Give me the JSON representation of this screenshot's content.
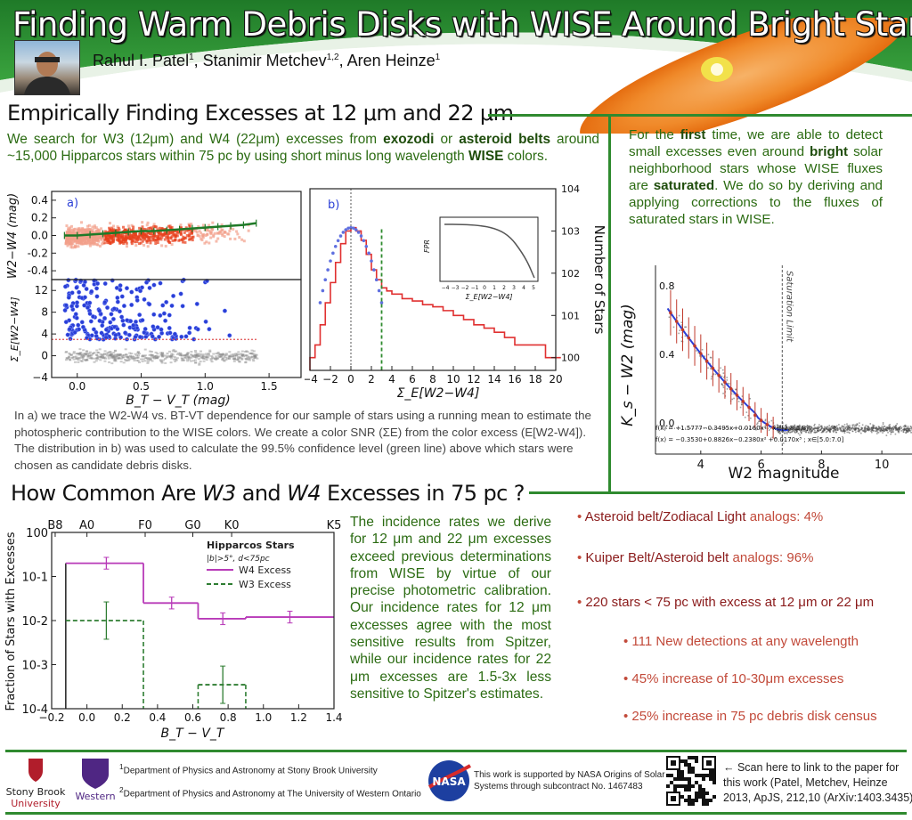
{
  "header": {
    "title": "Finding Warm Debris Disks with WISE Around Bright Stars",
    "authors": [
      {
        "name": "Rahul I. Patel",
        "aff": "1"
      },
      {
        "name": "Stanimir Metchev",
        "aff": "1,2"
      },
      {
        "name": "Aren Heinze",
        "aff": "1"
      }
    ]
  },
  "section1": {
    "title": "Empirically Finding Excesses at 12 μm and 22 μm",
    "intro": [
      {
        "t": "We search for W3 (12μm) and W4 (22μm) excesses from "
      },
      {
        "t": "exozodi",
        "b": true
      },
      {
        "t": " or "
      },
      {
        "t": "asteroid belts",
        "b": true
      },
      {
        "t": " around ~15,000 Hipparcos stars within 75 pc by using short minus long wavelength "
      },
      {
        "t": "WISE",
        "b": true
      },
      {
        "t": " colors."
      }
    ],
    "caption": "In a) we trace the W2-W4 vs. BT-VT dependence for our sample of stars using a running mean to estimate the photospheric contribution to the WISE colors. We create a color SNR (ΣE) from the color excess (E[W2-W4]). The distribution in b) was used to calculate the 99.5% confidence level (green line) above which stars were chosen as candidate debris disks."
  },
  "right_box": {
    "text": [
      {
        "t": "For the "
      },
      {
        "t": "first",
        "b": true
      },
      {
        "t": " time, we are able to detect small excesses even around "
      },
      {
        "t": "bright",
        "b": true
      },
      {
        "t": " solar neighborhood stars whose WISE fluxes are "
      },
      {
        "t": "saturated",
        "b": true
      },
      {
        "t": ". We do so by deriving and applying corrections to the fluxes of saturated stars in WISE."
      }
    ]
  },
  "section2": {
    "title_parts": {
      "a": "How Common Are ",
      "w3": "W3",
      "b": " and ",
      "w4": "W4",
      "c": " Excesses in 75 pc ?"
    },
    "text": "The incidence rates we derive for 12 μm and 22 μm excesses exceed previous determinations from WISE by virtue of our precise photometric calibration. Our incidence rates for 12 μm excesses agree with the most sensitive results from Spitzer, while our incidence rates for 22 μm excesses are 1.5-3x less sensitive to Spitzer's estimates."
  },
  "bullets": [
    {
      "main": "Asteroid belt/Zodiacal Light",
      "rest": " analogs: 4%",
      "level": 0
    },
    {
      "main": "Kuiper Belt/Asteroid belt",
      "rest": " analogs: 96%",
      "level": 0
    },
    {
      "main": "220 stars < 75 pc with excess at 12 μm or 22 μm",
      "rest": "",
      "level": 0
    },
    {
      "main": "",
      "rest": "111 New detections at any wavelength",
      "level": 1
    },
    {
      "main": "",
      "rest": "45% increase of 10-30μm excesses",
      "level": 1
    },
    {
      "main": "",
      "rest": "25% increase in 75 pc debris disk census",
      "level": 1
    }
  ],
  "footer": {
    "aff1": "Department of Physics and Astronomy at Stony Brook University",
    "aff2": "Department of Physics and Astronomy at The University of Western Ontario",
    "sb1": "Stony Brook",
    "sb2": "University",
    "west": "Western",
    "nasa": "NASA",
    "support": [
      "This work is supported by NASA Origins of Solar",
      "Systems through subcontract No. 1467483"
    ],
    "scan": [
      "← Scan here to link to the paper for",
      "this work (Patel, Metchev, Heinze",
      "2013, ApJS, 212,10 (ArXiv:1403.3435)"
    ]
  },
  "chart_data": [
    {
      "id": "a",
      "type": "scatter",
      "panel_label": "a)",
      "top": {
        "ylabel": "W2−W4 (mag)",
        "yticks": [
          -0.4,
          -0.2,
          0.0,
          0.2,
          0.4
        ],
        "ylim": [
          -0.5,
          0.5
        ],
        "running_mean_x": [
          -0.1,
          0.0,
          0.1,
          0.2,
          0.3,
          0.4,
          0.5,
          0.6,
          0.7,
          0.8,
          0.9,
          1.0,
          1.1,
          1.2,
          1.3,
          1.4
        ],
        "running_mean_y": [
          0.0,
          0.0,
          0.01,
          0.02,
          0.03,
          0.04,
          0.05,
          0.05,
          0.06,
          0.07,
          0.08,
          0.09,
          0.1,
          0.11,
          0.12,
          0.14
        ]
      },
      "bottom": {
        "ylabel": "Σ_E[W2−W4]",
        "yticks": [
          -4,
          0,
          4,
          8,
          12
        ],
        "ylim": [
          -4,
          14
        ],
        "threshold": 3.0
      },
      "xlabel": "B_T − V_T (mag)",
      "xticks": [
        0.0,
        0.5,
        1.0,
        1.5
      ],
      "xlim": [
        -0.2,
        1.75
      ]
    },
    {
      "id": "b",
      "type": "line",
      "panel_label": "b)",
      "xlabel": "Σ_E[W2−W4]",
      "ylabel": "Number of Stars",
      "xticks": [
        -4,
        -2,
        0,
        2,
        4,
        6,
        8,
        10,
        12,
        14,
        16,
        18,
        20
      ],
      "xlim": [
        -4,
        20
      ],
      "ylim_log": [
        0.5,
        10000
      ],
      "yticks": [
        "10^0",
        "10^1",
        "10^2",
        "10^3",
        "10^4"
      ],
      "threshold": 3.0,
      "series": [
        {
          "x": [
            -4,
            -3.5,
            -3,
            -2.5,
            -2,
            -1.5,
            -1,
            -0.5,
            0,
            0.5,
            1,
            1.5,
            2,
            2.5,
            3,
            3.5,
            4,
            5,
            6,
            7,
            8,
            9,
            10,
            11,
            12,
            13,
            14,
            15,
            16,
            17,
            18,
            19,
            20
          ],
          "y": [
            1,
            2,
            6,
            20,
            60,
            180,
            500,
            1000,
            1200,
            1000,
            600,
            280,
            120,
            70,
            45,
            38,
            32,
            25,
            22,
            18,
            16,
            13,
            10,
            8,
            6,
            5,
            4,
            3,
            2,
            2,
            2,
            1,
            1
          ]
        }
      ],
      "inset": {
        "xlabel": "Σ_E[W2−W4]",
        "ylabel": "FPR",
        "xticks": [
          -4,
          -3,
          -2,
          -1,
          0,
          1,
          2,
          3,
          4,
          5
        ]
      }
    },
    {
      "id": "saturation",
      "type": "scatter",
      "xlabel": "W2 magnitude",
      "ylabel": "K_s − W2 (mag)",
      "xticks": [
        4,
        6,
        8,
        10
      ],
      "yticks": [
        0.0,
        0.4,
        0.8
      ],
      "xlim": [
        2.5,
        11
      ],
      "ylim": [
        -0.15,
        0.95
      ],
      "saturation_limit": 6.7,
      "saturation_label": "Saturation Limit",
      "fit1": "f(x) = +1.5777−0.3495x+0.0160x² ; x∈[2.8:5.8]",
      "fit2": "f(x) = −0.3530+0.8826x−0.2380x² +0.0170x³ ; x∈[5.0:7.0]"
    },
    {
      "id": "incidence",
      "type": "line",
      "xlabel": "B_T − V_T",
      "ylabel": "Fraction of Stars with Excesses",
      "xticks": [
        -0.2,
        0.0,
        0.2,
        0.4,
        0.6,
        0.8,
        1.0,
        1.2,
        1.4
      ],
      "xlim": [
        -0.2,
        1.4
      ],
      "ylim_log": [
        0.0001,
        1
      ],
      "yticks": [
        "10^0",
        "10^-1",
        "10^-2",
        "10^-3",
        "10^-4"
      ],
      "spectral_types": [
        {
          "label": "B8",
          "x": -0.18
        },
        {
          "label": "A0",
          "x": 0.0
        },
        {
          "label": "F0",
          "x": 0.33
        },
        {
          "label": "G0",
          "x": 0.6
        },
        {
          "label": "K0",
          "x": 0.82
        },
        {
          "label": "K5",
          "x": 1.4
        }
      ],
      "legend_title": "Hipparcos Stars",
      "legend_sub": "|b|>5°, d<75pc",
      "series": [
        {
          "name": "W4 Excess",
          "color": "#b83ab8",
          "steps": [
            {
              "x0": -0.12,
              "x1": 0.32,
              "y": 0.2
            },
            {
              "x0": 0.32,
              "x1": 0.63,
              "y": 0.025
            },
            {
              "x0": 0.63,
              "x1": 0.9,
              "y": 0.011
            },
            {
              "x0": 0.9,
              "x1": 1.4,
              "y": 0.012
            }
          ],
          "points": [
            {
              "x": 0.11,
              "y": 0.2
            },
            {
              "x": 0.48,
              "y": 0.025
            },
            {
              "x": 0.77,
              "y": 0.011
            },
            {
              "x": 1.15,
              "y": 0.012
            }
          ]
        },
        {
          "name": "W3 Excess",
          "color": "#2e7d32",
          "steps": [
            {
              "x0": -0.12,
              "x1": 0.32,
              "y": 0.01
            },
            {
              "x0": 0.63,
              "x1": 0.9,
              "y": 0.00035
            }
          ],
          "points": [
            {
              "x": 0.11,
              "y": 0.01
            },
            {
              "x": 0.77,
              "y": 0.00035
            }
          ]
        }
      ]
    }
  ]
}
